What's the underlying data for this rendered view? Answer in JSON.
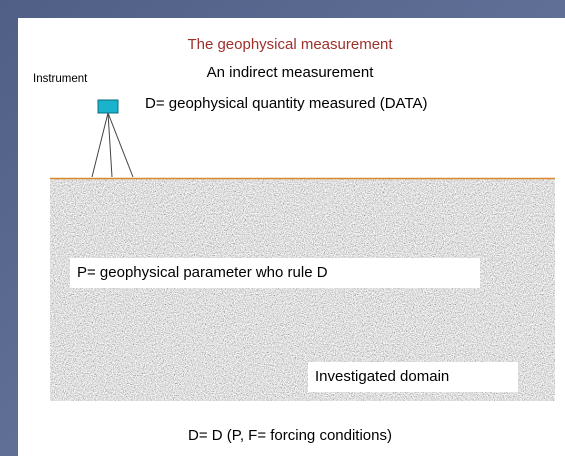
{
  "slide": {
    "title": "The geophysical measurement",
    "subtitle": "An indirect measurement",
    "instrument_label": "Instrument",
    "data_label": "D= geophysical quantity measured (DATA)",
    "parameter_label": "P= geophysical parameter who rule D",
    "domain_label": "Investigated domain",
    "equation": "D= D (P, F= forcing conditions)"
  }
}
